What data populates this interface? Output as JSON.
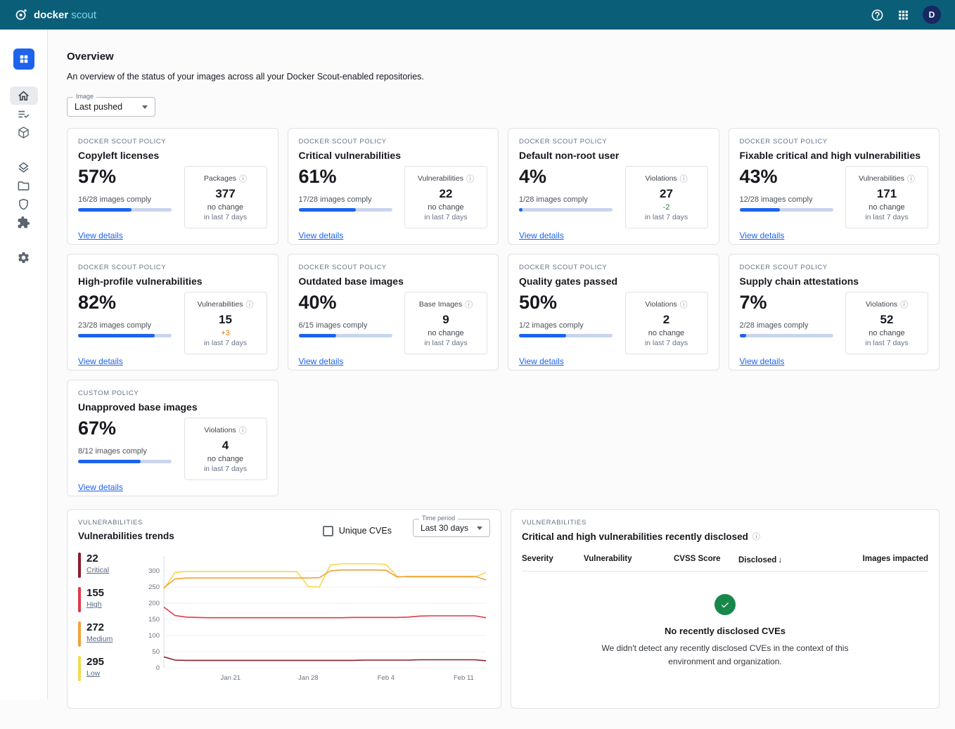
{
  "header": {
    "product_bold": "docker",
    "product_light": "scout",
    "avatar_initial": "D"
  },
  "page": {
    "title": "Overview",
    "subtitle": "An overview of the status of your images across all your Docker Scout-enabled repositories.",
    "image_filter": {
      "label": "Image",
      "value": "Last pushed"
    }
  },
  "policy_cards": [
    {
      "eyebrow": "DOCKER SCOUT POLICY",
      "title": "Copyleft licenses",
      "percent": "57%",
      "progress": 57,
      "comply": "16/28 images comply",
      "link": "View details",
      "stat": {
        "label": "Packages",
        "value": "377",
        "change": "no change",
        "period": "in last 7 days"
      }
    },
    {
      "eyebrow": "DOCKER SCOUT POLICY",
      "title": "Critical vulnerabilities",
      "percent": "61%",
      "progress": 61,
      "comply": "17/28 images comply",
      "link": "View details",
      "stat": {
        "label": "Vulnerabilities",
        "value": "22",
        "change": "no change",
        "period": "in last 7 days"
      }
    },
    {
      "eyebrow": "DOCKER SCOUT POLICY",
      "title": "Default non-root user",
      "percent": "4%",
      "progress": 4,
      "comply": "1/28 images comply",
      "link": "View details",
      "stat": {
        "label": "Violations",
        "value": "27",
        "change": "-2",
        "change_color": "#2e7d32",
        "period": "in last 7 days"
      }
    },
    {
      "eyebrow": "DOCKER SCOUT POLICY",
      "title": "Fixable critical and high vulnerabilities",
      "percent": "43%",
      "progress": 43,
      "comply": "12/28 images comply",
      "link": "View details",
      "stat": {
        "label": "Vulnerabilities",
        "value": "171",
        "change": "no change",
        "period": "in last 7 days"
      }
    },
    {
      "eyebrow": "DOCKER SCOUT POLICY",
      "title": "High-profile vulnerabilities",
      "percent": "82%",
      "progress": 82,
      "comply": "23/28 images comply",
      "link": "View details",
      "stat": {
        "label": "Vulnerabilities",
        "value": "15",
        "change": "+3",
        "change_color": "#d9730d",
        "period": "in last 7 days"
      }
    },
    {
      "eyebrow": "DOCKER SCOUT POLICY",
      "title": "Outdated base images",
      "percent": "40%",
      "progress": 40,
      "comply": "6/15 images comply",
      "link": "View details",
      "stat": {
        "label": "Base Images",
        "value": "9",
        "change": "no change",
        "period": "in last 7 days"
      }
    },
    {
      "eyebrow": "DOCKER SCOUT POLICY",
      "title": "Quality gates passed",
      "percent": "50%",
      "progress": 50,
      "comply": "1/2 images comply",
      "link": "View details",
      "stat": {
        "label": "Violations",
        "value": "2",
        "change": "no change",
        "period": "in last 7 days"
      }
    },
    {
      "eyebrow": "DOCKER SCOUT POLICY",
      "title": "Supply chain attestations",
      "percent": "7%",
      "progress": 7,
      "comply": "2/28 images comply",
      "link": "View details",
      "stat": {
        "label": "Violations",
        "value": "52",
        "change": "no change",
        "period": "in last 7 days"
      }
    },
    {
      "eyebrow": "CUSTOM POLICY",
      "title": "Unapproved base images",
      "percent": "67%",
      "progress": 67,
      "comply": "8/12 images comply",
      "link": "View details",
      "stat": {
        "label": "Violations",
        "value": "4",
        "change": "no change",
        "period": "in last 7 days"
      }
    }
  ],
  "trends": {
    "eyebrow": "VULNERABILITIES",
    "title": "Vulnerabilities trends",
    "checkbox_label": "Unique CVEs",
    "checkbox_checked": false,
    "time_period": {
      "label": "Time period",
      "value": "Last 30 days"
    },
    "legend": [
      {
        "count": "22",
        "label": "Critical",
        "color": "#8b1c2b"
      },
      {
        "count": "155",
        "label": "High",
        "color": "#e0394a"
      },
      {
        "count": "272",
        "label": "Medium",
        "color": "#f0a23a"
      },
      {
        "count": "295",
        "label": "Low",
        "color": "#f3d94f"
      }
    ]
  },
  "chart_data": {
    "type": "line",
    "title": "Vulnerabilities trends",
    "xlabel": "",
    "ylabel": "",
    "ylim": [
      0,
      300
    ],
    "y_ticks": [
      0,
      50,
      100,
      150,
      200,
      250,
      300
    ],
    "x_range": [
      0,
      29
    ],
    "x_tick_labels": [
      "Jan 21",
      "Jan 28",
      "Feb 4",
      "Feb 11"
    ],
    "x_tick_positions": [
      6,
      13,
      20,
      27
    ],
    "legend_position": "left",
    "grid": false,
    "series": [
      {
        "name": "Critical",
        "color": "#8b1c2b",
        "current": 22,
        "values": [
          34,
          24,
          23,
          23,
          23,
          23,
          23,
          23,
          23,
          23,
          23,
          23,
          23,
          23,
          23,
          23,
          23,
          23,
          24,
          24,
          24,
          24,
          24,
          25,
          25,
          25,
          25,
          25,
          25,
          22
        ]
      },
      {
        "name": "High",
        "color": "#e0394a",
        "current": 155,
        "values": [
          188,
          162,
          157,
          156,
          155,
          155,
          155,
          155,
          155,
          155,
          155,
          155,
          155,
          155,
          155,
          155,
          155,
          156,
          156,
          156,
          156,
          156,
          157,
          160,
          161,
          161,
          161,
          161,
          161,
          155
        ]
      },
      {
        "name": "Medium",
        "color": "#f0a23a",
        "current": 272,
        "values": [
          248,
          275,
          278,
          278,
          278,
          278,
          278,
          278,
          278,
          278,
          278,
          278,
          278,
          278,
          279,
          300,
          303,
          303,
          303,
          303,
          302,
          281,
          283,
          283,
          283,
          283,
          283,
          283,
          283,
          272
        ]
      },
      {
        "name": "Low",
        "color": "#f3d94f",
        "current": 295,
        "values": [
          243,
          295,
          298,
          298,
          298,
          298,
          298,
          298,
          298,
          298,
          298,
          298,
          297,
          252,
          250,
          318,
          322,
          322,
          322,
          322,
          320,
          283,
          281,
          281,
          281,
          281,
          281,
          281,
          281,
          295
        ]
      }
    ]
  },
  "disclosed": {
    "eyebrow": "VULNERABILITIES",
    "title": "Critical and high vulnerabilities recently disclosed",
    "columns": [
      "Severity",
      "Vulnerability",
      "CVSS Score",
      "Disclosed",
      "Images impacted"
    ],
    "sorted_by": "Disclosed",
    "sort_direction": "desc",
    "empty_title": "No recently disclosed CVEs",
    "empty_body": "We didn't detect any recently disclosed CVEs in the context of this environment and organization."
  },
  "icons": {
    "header": [
      "docker-scout-logo-icon",
      "help-icon",
      "apps-grid-icon"
    ],
    "sidebar": [
      "grid-tile-icon",
      "home-icon",
      "checklist-icon",
      "cube-icon",
      "layers-icon",
      "folder-icon",
      "shield-icon",
      "puzzle-icon",
      "gear-icon"
    ],
    "misc": [
      "info-icon",
      "chevron-down-icon",
      "sort-desc-icon",
      "check-circle-icon"
    ]
  },
  "colors": {
    "header_bg": "#0b5e78",
    "accent_blue": "#1d63ed",
    "progress_track": "#c9d5ee",
    "critical": "#8b1c2b",
    "high": "#e0394a",
    "medium": "#f0a23a",
    "low": "#f3d94f",
    "success_green": "#16884a",
    "change_improved_green": "#2e7d32",
    "change_worse_orange": "#d9730d"
  }
}
